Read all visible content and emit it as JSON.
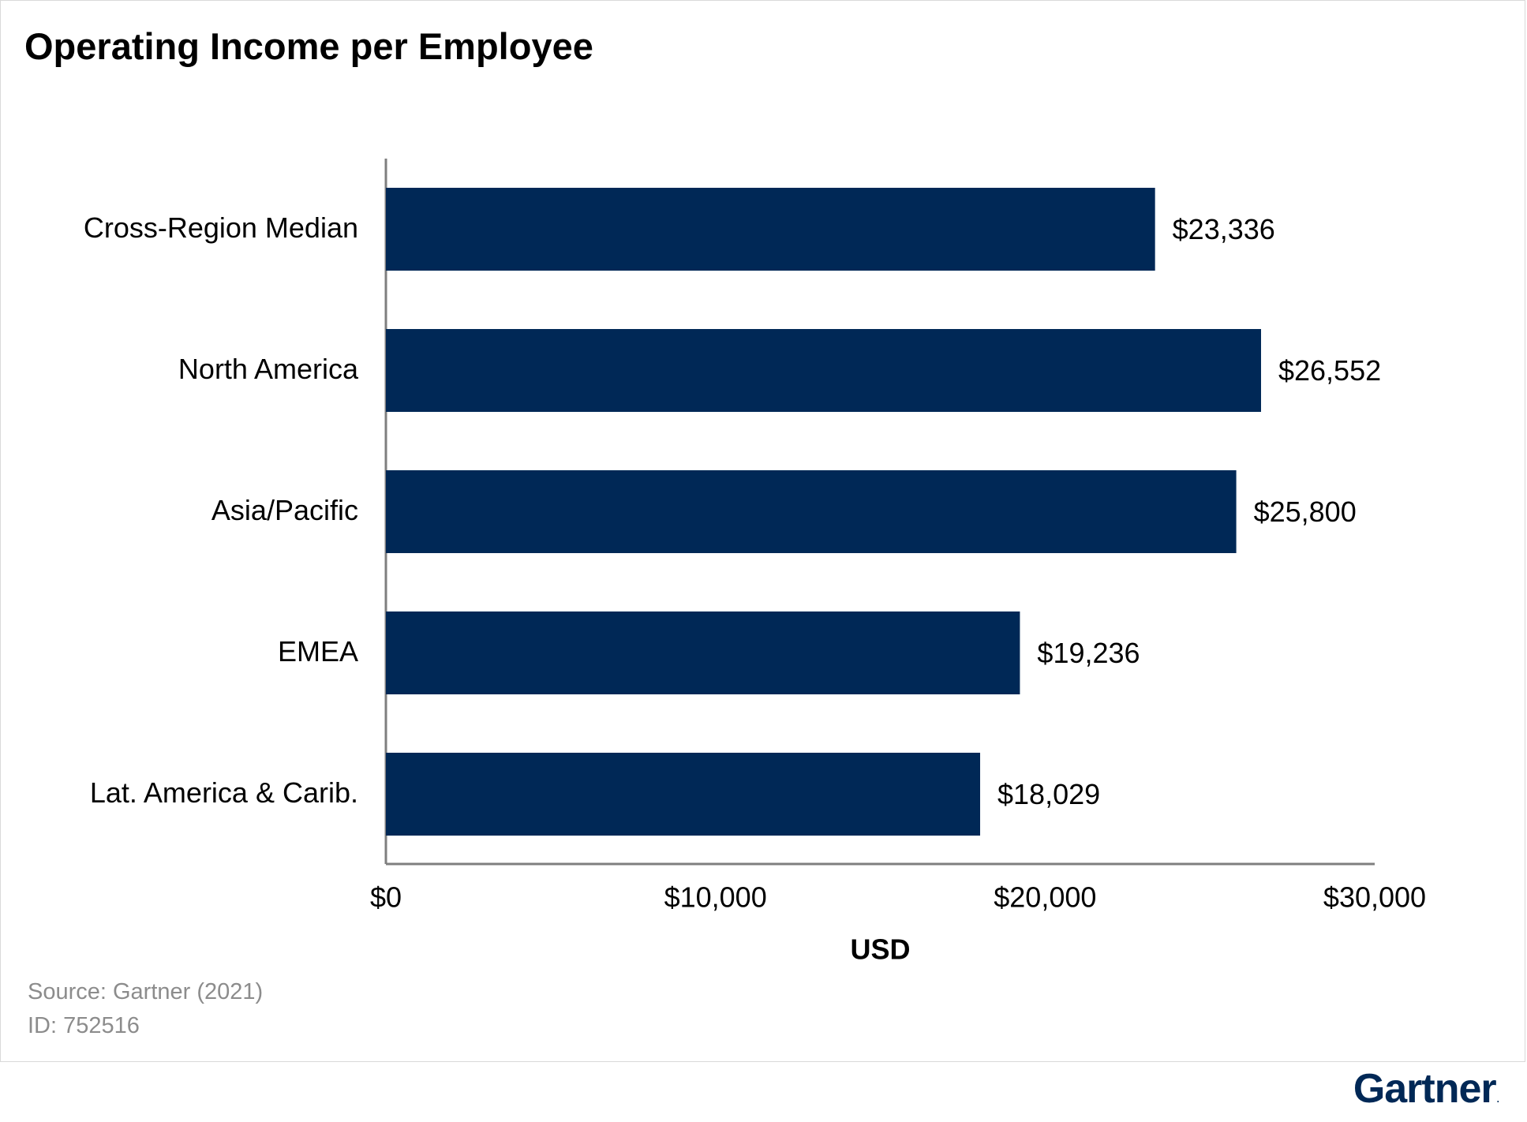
{
  "title": "Operating Income per Employee",
  "source": "Source: Gartner (2021)",
  "doc_id": "ID: 752516",
  "brand": {
    "name": "Gartner",
    "mark": ".",
    "color": "#002856"
  },
  "colors": {
    "bar": "#002856",
    "axis": "#7f7f7f",
    "text": "#000000"
  },
  "chart_data": {
    "type": "bar",
    "orientation": "horizontal",
    "categories": [
      "Cross-Region Median",
      "North America",
      "Asia/Pacific",
      "EMEA",
      "Lat. America & Carib."
    ],
    "values": [
      23336,
      26552,
      25800,
      19236,
      18029
    ],
    "value_labels": [
      "$23,336",
      "$26,552",
      "$25,800",
      "$19,236",
      "$18,029"
    ],
    "xlabel": "USD",
    "ylabel": "",
    "xlim": [
      0,
      30000
    ],
    "xticks": [
      0,
      10000,
      20000,
      30000
    ],
    "xtick_labels": [
      "$0",
      "$10,000",
      "$20,000",
      "$30,000"
    ],
    "grid": false,
    "legend": "none"
  }
}
